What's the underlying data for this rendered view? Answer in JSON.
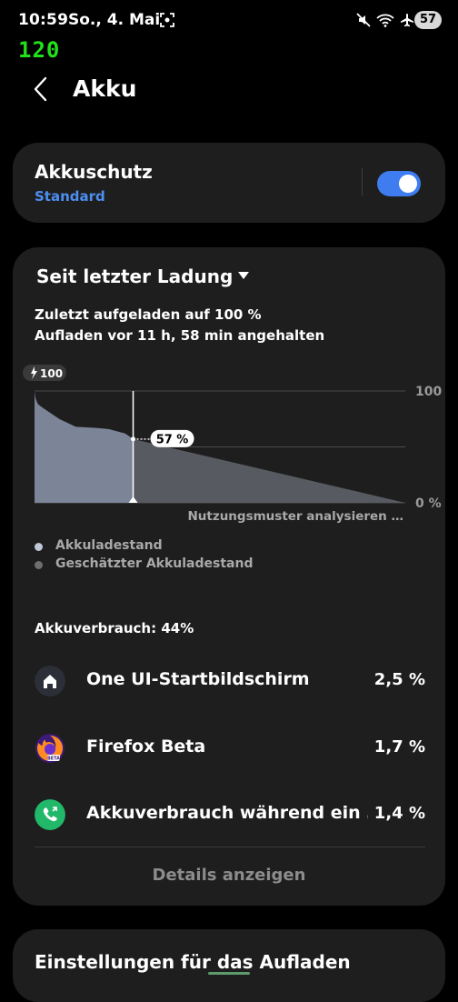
{
  "status_bar": {
    "time": "10:59",
    "date": "So., 4. Mai",
    "battery": "57",
    "fps": "120",
    "icons": [
      "screenshot-icon",
      "mute-icon",
      "wifi-icon",
      "airplane-icon"
    ]
  },
  "header": {
    "title": "Akku"
  },
  "battery_protection": {
    "title": "Akkuschutz",
    "mode": "Standard",
    "toggle_on": true,
    "accent": "#3e7cf0"
  },
  "usage_card": {
    "period_label": "Seit letzter Ladung",
    "charged_info": "Zuletzt aufgeladen auf 100 %",
    "stopped_info": "Aufladen vor 11 h, 58 min angehalten",
    "analysis_label": "Nutzungsmuster analysieren …",
    "legend": [
      {
        "label": "Akkuladestand",
        "color": "#bfc8d6"
      },
      {
        "label": "Geschätzter Akkuladestand",
        "color": "#6e6e6e"
      }
    ],
    "total_usage": "Akkuverbrauch: 44%",
    "apps": [
      {
        "name": "One UI-Startbildschirm",
        "value": "2,5 %",
        "icon": "home-icon"
      },
      {
        "name": "Firefox Beta",
        "value": "1,7 %",
        "icon": "firefox-beta-icon"
      },
      {
        "name": "Akkuverbrauch während ein …",
        "value": "1,4 %",
        "icon": "phone-call-icon"
      }
    ],
    "details_label": "Details anzeigen"
  },
  "charge_settings": {
    "title": "Einstellungen für das Aufladen"
  },
  "chart_data": {
    "type": "area",
    "start_marker": "100",
    "current_label": "57 %",
    "y_tick_labels": [
      "100",
      "0 %"
    ],
    "ylim": [
      0,
      100
    ],
    "current_value": 57,
    "series": [
      {
        "name": "Akkuladestand",
        "x": [
          0,
          0.05,
          0.1,
          0.3,
          0.45,
          1.0,
          3.0,
          5.0,
          7.5,
          9.0,
          11.0,
          11.97
        ],
        "values": [
          100,
          97,
          94,
          90,
          88,
          85,
          75,
          68,
          67,
          66,
          62,
          57
        ]
      },
      {
        "name": "Geschätzter Akkuladestand",
        "x": [
          11.97,
          45.0
        ],
        "values": [
          57,
          0
        ]
      }
    ]
  }
}
